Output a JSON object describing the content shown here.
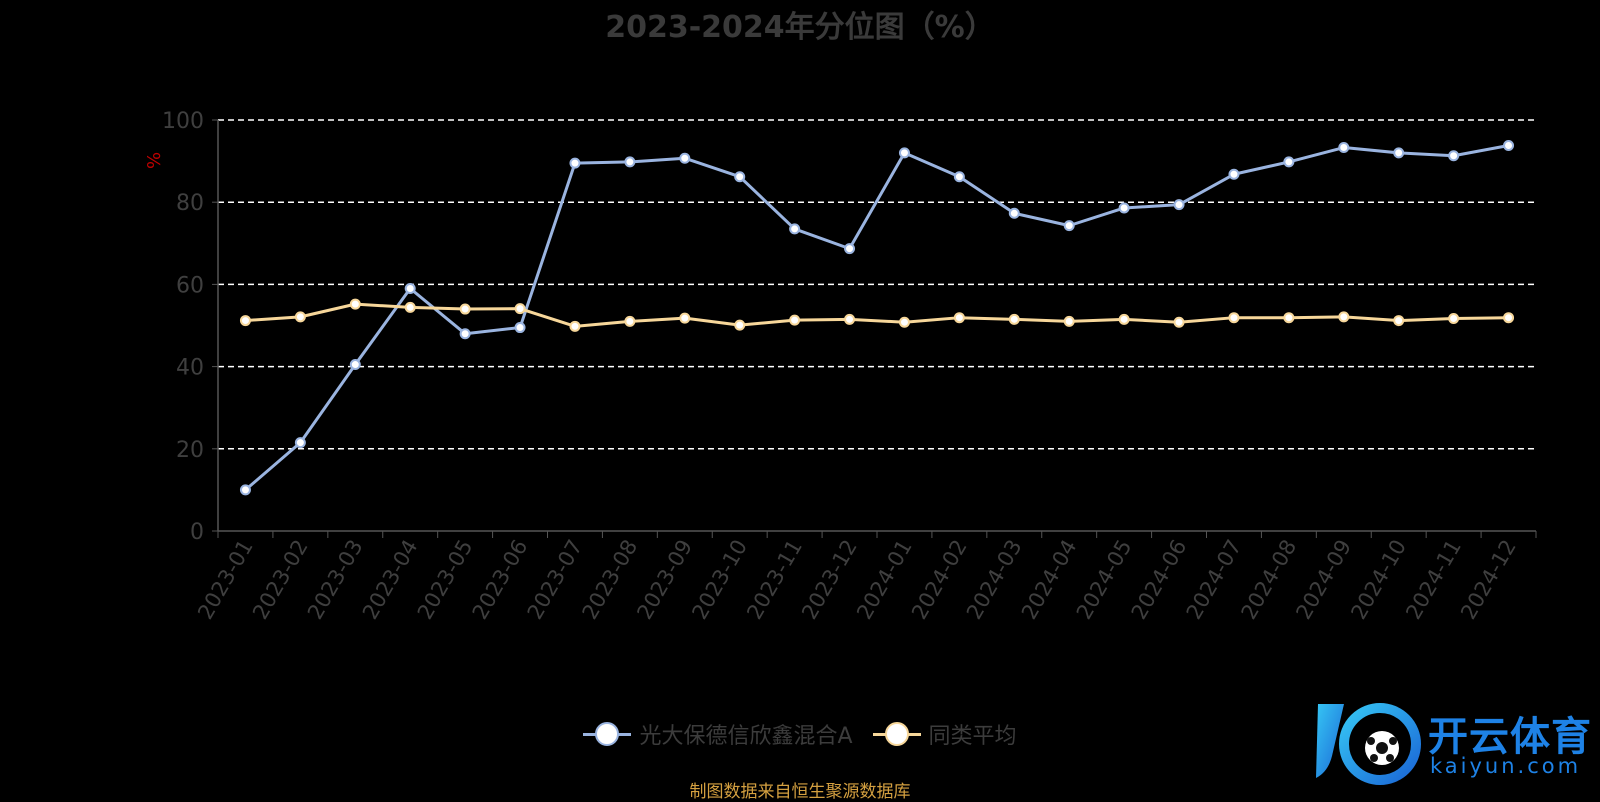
{
  "chart_data": {
    "type": "line",
    "title": "2023-2024年分位图（%）",
    "ylabel": "%",
    "xlabel": "",
    "ylim": [
      0,
      100
    ],
    "yticks": [
      0,
      20,
      40,
      60,
      80,
      100
    ],
    "grid": true,
    "legend_position": "bottom",
    "categories": [
      "2023-01",
      "2023-02",
      "2023-03",
      "2023-04",
      "2023-05",
      "2023-06",
      "2023-07",
      "2023-08",
      "2023-09",
      "2023-10",
      "2023-11",
      "2023-12",
      "2024-01",
      "2024-02",
      "2024-03",
      "2024-04",
      "2024-05",
      "2024-06",
      "2024-07",
      "2024-08",
      "2024-09",
      "2024-10",
      "2024-11",
      "2024-12"
    ],
    "series": [
      {
        "name": "光大保德信欣鑫混合A",
        "color": "#9ab4e0",
        "values": [
          10,
          21.5,
          40.5,
          59,
          48,
          49.5,
          89.5,
          89.8,
          90.7,
          86.2,
          73.5,
          68.7,
          92,
          86.2,
          77.3,
          74.3,
          78.6,
          79.4,
          86.8,
          89.8,
          93.3,
          92,
          91.3,
          93.8
        ]
      },
      {
        "name": "同类平均",
        "color": "#f7d79a",
        "values": [
          51.2,
          52.1,
          55.2,
          54.4,
          54,
          54.1,
          49.8,
          51,
          51.8,
          50.1,
          51.3,
          51.5,
          50.8,
          51.9,
          51.5,
          51,
          51.5,
          50.8,
          51.9,
          51.9,
          52.1,
          51.2,
          51.7,
          51.9
        ]
      }
    ]
  },
  "source_note": "制图数据来自恒生聚源数据库",
  "watermark": {
    "brand": "开云体育",
    "site": "kaiyun.com"
  }
}
